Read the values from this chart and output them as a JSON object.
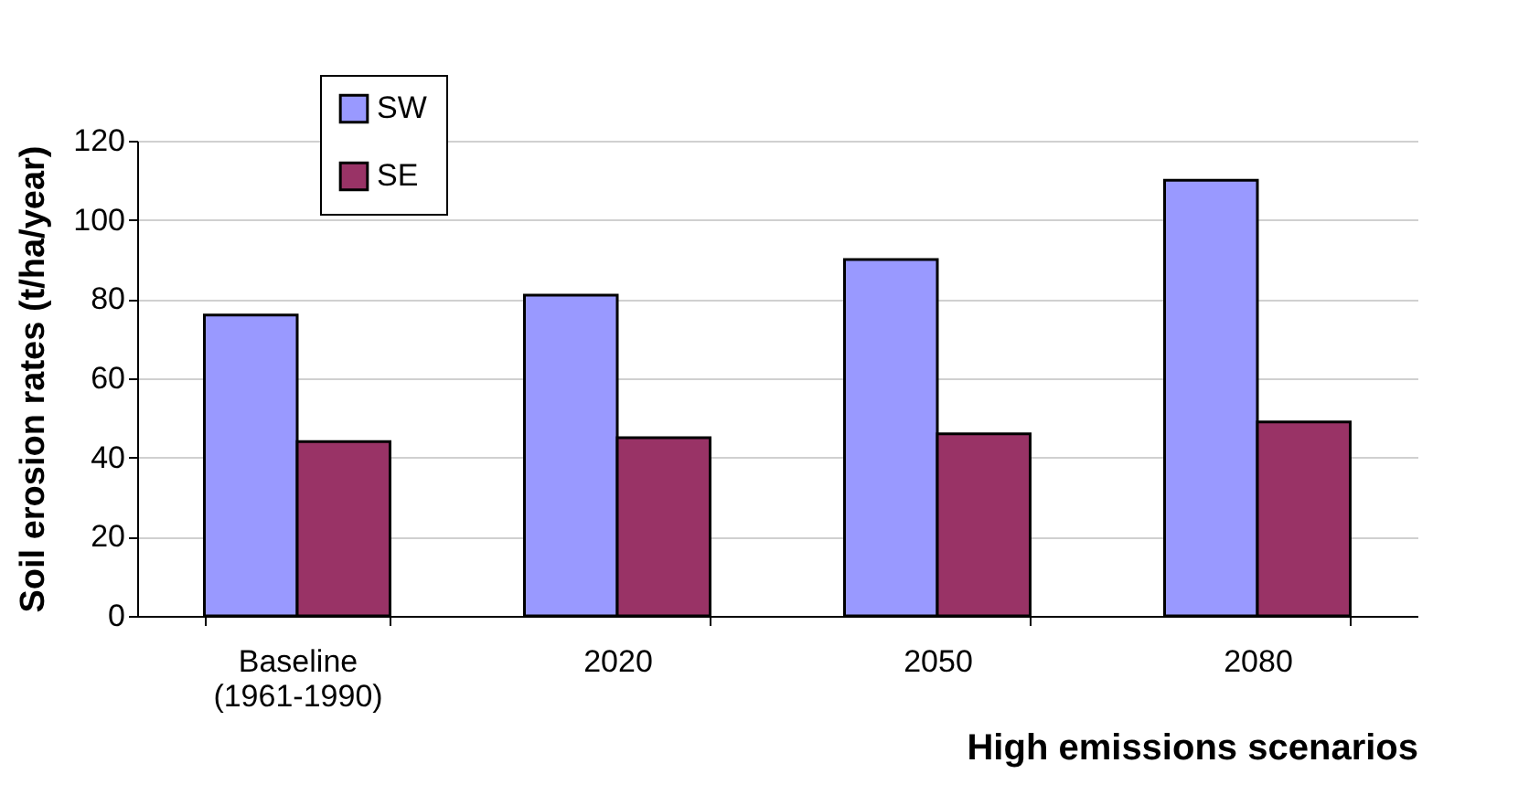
{
  "chart_data": {
    "type": "bar",
    "xlabel": "High emissions scenarios",
    "ylabel": "Soil erosion rates (t/ha/year)",
    "categories": [
      "Baseline (1961-1990)",
      "2020",
      "2050",
      "2080"
    ],
    "series": [
      {
        "name": "SW",
        "color": "#9999ff",
        "values": [
          76,
          81,
          90,
          110
        ]
      },
      {
        "name": "SE",
        "color": "#993366",
        "values": [
          44,
          45,
          46,
          49
        ]
      }
    ],
    "ylim": [
      0,
      120
    ],
    "yticks": [
      0,
      20,
      40,
      60,
      80,
      100,
      120
    ],
    "grid": "y",
    "legend": "top left"
  }
}
